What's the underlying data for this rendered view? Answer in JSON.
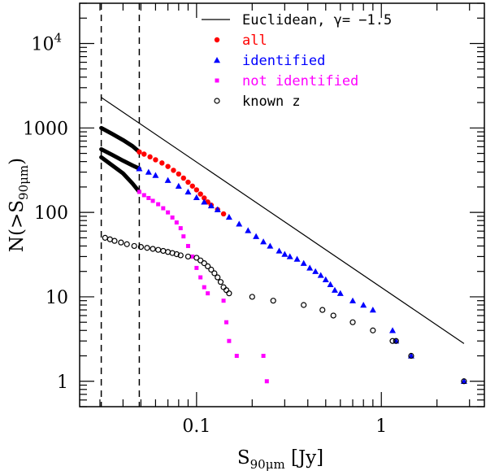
{
  "chart_data": {
    "type": "scatter",
    "xscale": "log",
    "yscale": "log",
    "xlim": [
      0.0233,
      3.61
    ],
    "ylim": [
      0.5,
      30000
    ],
    "xlabel": {
      "main": "S",
      "sub": "90μm",
      "unit": " [Jy]"
    },
    "ylabel": {
      "main": "N(>S",
      "sub": "90μm",
      "close": ")"
    },
    "x_ticks": [
      {
        "value": 0.1,
        "label": "0.1"
      },
      {
        "value": 1,
        "label": "1"
      }
    ],
    "y_ticks": [
      {
        "value": 1,
        "label": "1"
      },
      {
        "value": 10,
        "label": "10"
      },
      {
        "value": 100,
        "label": "100"
      },
      {
        "value": 1000,
        "label": "1000"
      },
      {
        "value": 10000,
        "label": "10",
        "exp": "4"
      }
    ],
    "vlines": [
      0.0305,
      0.049
    ],
    "euclidean": {
      "name": "Euclidean, γ= −1.5",
      "color": "#000000",
      "x": [
        0.0305,
        2.8
      ],
      "y": [
        2300,
        2.8
      ]
    },
    "series": [
      {
        "name": "all",
        "marker": "circle",
        "color": "#ff0000",
        "x": [
          0.049,
          0.052,
          0.056,
          0.06,
          0.065,
          0.07,
          0.075,
          0.08,
          0.085,
          0.09,
          0.095,
          0.1,
          0.105,
          0.11,
          0.115,
          0.12,
          0.13,
          0.14
        ],
        "y": [
          520,
          490,
          455,
          420,
          385,
          350,
          315,
          285,
          255,
          228,
          205,
          185,
          165,
          148,
          133,
          122,
          108,
          96
        ]
      },
      {
        "name": "identified",
        "marker": "triangle",
        "color": "#0000ff",
        "x": [
          0.049,
          0.055,
          0.06,
          0.07,
          0.08,
          0.09,
          0.1,
          0.11,
          0.12,
          0.13,
          0.15,
          0.17,
          0.19,
          0.21,
          0.23,
          0.25,
          0.28,
          0.3,
          0.32,
          0.35,
          0.38,
          0.41,
          0.44,
          0.47,
          0.5,
          0.53,
          0.56,
          0.6,
          0.7,
          0.8,
          0.9,
          1.15,
          1.2,
          1.45,
          2.8
        ],
        "y": [
          330,
          300,
          275,
          240,
          205,
          175,
          150,
          133,
          120,
          108,
          88,
          73,
          61,
          52,
          45,
          40,
          35,
          32,
          30,
          28,
          25,
          22,
          20,
          18,
          16,
          14,
          12,
          11,
          9,
          8,
          7,
          4,
          3,
          2,
          1
        ]
      },
      {
        "name": "not identified",
        "marker": "square",
        "color": "#ff00ff",
        "x": [
          0.049,
          0.052,
          0.055,
          0.058,
          0.062,
          0.066,
          0.07,
          0.074,
          0.078,
          0.082,
          0.085,
          0.09,
          0.095,
          0.1,
          0.105,
          0.11,
          0.115,
          0.14,
          0.145,
          0.15,
          0.165,
          0.23,
          0.24
        ],
        "y": [
          175,
          160,
          148,
          137,
          125,
          112,
          100,
          87,
          76,
          65,
          52,
          40,
          30,
          22,
          17,
          13,
          11,
          9,
          5,
          3,
          2,
          2,
          1
        ]
      },
      {
        "name": "known z",
        "marker": "open-circle",
        "color": "#000000",
        "x": [
          0.032,
          0.034,
          0.036,
          0.039,
          0.042,
          0.046,
          0.05,
          0.054,
          0.058,
          0.062,
          0.066,
          0.07,
          0.074,
          0.078,
          0.082,
          0.09,
          0.1,
          0.105,
          0.11,
          0.115,
          0.12,
          0.125,
          0.13,
          0.135,
          0.14,
          0.145,
          0.15,
          0.2,
          0.26,
          0.38,
          0.48,
          0.55,
          0.7,
          0.9,
          1.15,
          1.2,
          1.45,
          2.8
        ],
        "y": [
          50,
          48,
          46,
          44,
          42,
          40,
          39,
          38,
          37,
          36,
          35,
          34,
          33,
          32,
          31,
          30,
          29,
          27,
          25,
          23,
          21,
          19,
          17,
          15,
          13,
          12,
          11,
          10,
          9,
          8,
          7,
          6,
          5,
          4,
          3,
          3,
          2,
          1
        ]
      }
    ],
    "black_bands": [
      {
        "x": [
          0.0305,
          0.035,
          0.04,
          0.045,
          0.049
        ],
        "y": [
          1000,
          850,
          720,
          610,
          520
        ]
      },
      {
        "x": [
          0.0305,
          0.035,
          0.04,
          0.045,
          0.049
        ],
        "y": [
          560,
          480,
          410,
          360,
          330
        ]
      },
      {
        "x": [
          0.0305,
          0.035,
          0.04,
          0.045,
          0.049
        ],
        "y": [
          450,
          360,
          290,
          220,
          175
        ]
      }
    ],
    "legend": {
      "position": "top-right"
    }
  }
}
